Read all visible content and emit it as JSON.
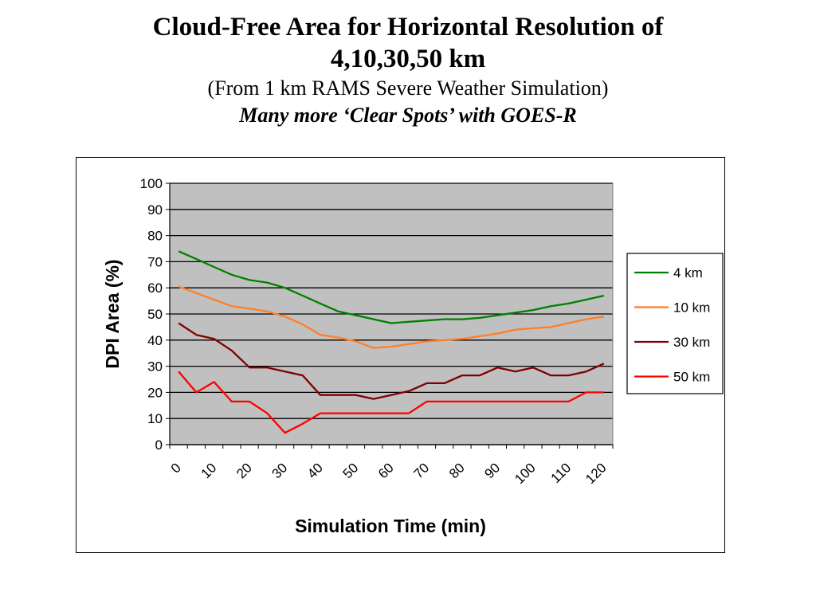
{
  "slide": {
    "title_line1": "Cloud-Free Area for  Horizontal Resolution of",
    "title_line2": "4,10,30,50 km",
    "subtitle": "(From 1 km RAMS Severe Weather Simulation)",
    "tagline": "Many more ‘Clear Spots’ with GOES-R"
  },
  "chart_data": {
    "type": "line",
    "xlabel": "Simulation Time (min)",
    "ylabel": "DPI Area (%)",
    "ylim": [
      0,
      100
    ],
    "y_ticks": [
      "0",
      "10",
      "20",
      "30",
      "40",
      "50",
      "60",
      "70",
      "80",
      "90",
      "100"
    ],
    "x_tick_labels": [
      "0",
      "10",
      "20",
      "30",
      "40",
      "50",
      "60",
      "70",
      "80",
      "90",
      "100",
      "110",
      "120"
    ],
    "grid": true,
    "plot_background": "#c0c0c0",
    "legend_position": "right",
    "x": [
      0,
      5,
      10,
      15,
      20,
      25,
      30,
      35,
      40,
      45,
      50,
      55,
      60,
      65,
      70,
      75,
      80,
      85,
      90,
      95,
      100,
      105,
      110,
      115,
      120,
      125
    ],
    "series": [
      {
        "name": "4 km",
        "color": "#008000",
        "values": [
          74,
          71,
          68,
          65,
          63,
          62,
          60,
          57,
          54,
          51,
          49.5,
          48,
          46.5,
          47,
          47.5,
          48,
          48,
          48.5,
          49.5,
          50.5,
          51.5,
          53,
          54,
          55.5,
          57,
          null
        ]
      },
      {
        "name": "10 km",
        "color": "#ff7f27",
        "values": [
          60.5,
          58,
          55.5,
          53,
          52,
          51,
          49,
          46,
          42,
          41,
          39.5,
          37,
          37.5,
          38.5,
          39.5,
          40,
          40.5,
          41.5,
          42.5,
          44,
          44.5,
          45,
          46.5,
          48,
          49,
          null
        ]
      },
      {
        "name": "30 km",
        "color": "#800000",
        "values": [
          46.5,
          42,
          40.5,
          36,
          29.5,
          29.5,
          28,
          26.5,
          19,
          19,
          19,
          17.5,
          19,
          20.5,
          23.5,
          23.5,
          26.5,
          26.5,
          29.5,
          28,
          29.5,
          26.5,
          26.5,
          28,
          31,
          null
        ]
      },
      {
        "name": "50 km",
        "color": "#ff0000",
        "values": [
          28,
          20,
          24,
          16.5,
          16.5,
          12,
          4.5,
          8,
          12,
          12,
          12,
          12,
          12,
          12,
          16.5,
          16.5,
          16.5,
          16.5,
          16.5,
          16.5,
          16.5,
          16.5,
          16.5,
          20,
          20,
          null
        ]
      }
    ]
  }
}
